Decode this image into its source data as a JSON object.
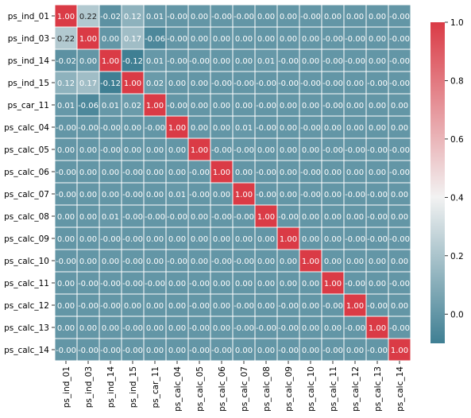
{
  "chart_data": {
    "type": "heatmap",
    "title": "",
    "xlabel": "",
    "ylabel": "",
    "labels": [
      "ps_ind_01",
      "ps_ind_03",
      "ps_ind_14",
      "ps_ind_15",
      "ps_car_11",
      "ps_calc_04",
      "ps_calc_05",
      "ps_calc_06",
      "ps_calc_07",
      "ps_calc_08",
      "ps_calc_09",
      "ps_calc_10",
      "ps_calc_11",
      "ps_calc_12",
      "ps_calc_13",
      "ps_calc_14"
    ],
    "matrix": [
      [
        "1.00",
        "0.22",
        "-0.02",
        "0.12",
        "0.01",
        "-0.00",
        "0.00",
        "-0.00",
        "-0.00",
        "0.00",
        "0.00",
        "-0.00",
        "0.00",
        "0.00",
        "0.00",
        "-0.00"
      ],
      [
        "0.22",
        "1.00",
        "0.00",
        "0.17",
        "-0.06",
        "-0.00",
        "0.00",
        "0.00",
        "0.00",
        "0.00",
        "0.00",
        "0.00",
        "-0.00",
        "-0.00",
        "0.00",
        "-0.00"
      ],
      [
        "-0.02",
        "0.00",
        "1.00",
        "-0.12",
        "0.01",
        "-0.00",
        "-0.00",
        "0.00",
        "0.00",
        "0.01",
        "-0.00",
        "0.00",
        "-0.00",
        "-0.00",
        "0.00",
        "-0.00"
      ],
      [
        "0.12",
        "0.17",
        "-0.12",
        "1.00",
        "0.02",
        "0.00",
        "0.00",
        "-0.00",
        "-0.00",
        "-0.00",
        "-0.00",
        "-0.00",
        "-0.00",
        "0.00",
        "-0.00",
        "-0.00"
      ],
      [
        "0.01",
        "-0.06",
        "0.01",
        "0.02",
        "1.00",
        "-0.00",
        "0.00",
        "0.00",
        "0.00",
        "-0.00",
        "0.00",
        "0.00",
        "-0.00",
        "0.00",
        "0.00",
        "0.00"
      ],
      [
        "-0.00",
        "-0.00",
        "-0.00",
        "0.00",
        "-0.00",
        "1.00",
        "0.00",
        "0.00",
        "0.01",
        "-0.00",
        "0.00",
        "-0.00",
        "0.00",
        "0.00",
        "0.00",
        "0.00"
      ],
      [
        "0.00",
        "0.00",
        "-0.00",
        "0.00",
        "0.00",
        "0.00",
        "1.00",
        "-0.00",
        "-0.00",
        "0.00",
        "0.00",
        "0.00",
        "-0.00",
        "-0.00",
        "-0.00",
        "-0.00"
      ],
      [
        "-0.00",
        "0.00",
        "0.00",
        "-0.00",
        "0.00",
        "0.00",
        "-0.00",
        "1.00",
        "0.00",
        "-0.00",
        "0.00",
        "-0.00",
        "0.00",
        "0.00",
        "0.00",
        "-0.00"
      ],
      [
        "-0.00",
        "0.00",
        "0.00",
        "-0.00",
        "0.00",
        "0.01",
        "-0.00",
        "0.00",
        "1.00",
        "-0.00",
        "0.00",
        "-0.00",
        "0.00",
        "-0.00",
        "-0.00",
        "0.00"
      ],
      [
        "0.00",
        "0.00",
        "0.01",
        "-0.00",
        "-0.00",
        "-0.00",
        "0.00",
        "-0.00",
        "-0.00",
        "1.00",
        "-0.00",
        "0.00",
        "0.00",
        "0.00",
        "-0.00",
        "0.00"
      ],
      [
        "0.00",
        "0.00",
        "-0.00",
        "-0.00",
        "0.00",
        "0.00",
        "0.00",
        "0.00",
        "0.00",
        "0.00",
        "1.00",
        "0.00",
        "0.00",
        "-0.00",
        "-0.00",
        "-0.00"
      ],
      [
        "-0.00",
        "0.00",
        "0.00",
        "-0.00",
        "0.00",
        "-0.00",
        "0.00",
        "-0.00",
        "-0.00",
        "0.00",
        "0.00",
        "1.00",
        "0.00",
        "0.00",
        "0.00",
        "0.00"
      ],
      [
        "0.00",
        "-0.00",
        "-0.00",
        "-0.00",
        "-0.00",
        "0.00",
        "-0.00",
        "0.00",
        "0.00",
        "0.00",
        "0.00",
        "0.00",
        "1.00",
        "-0.00",
        "0.00",
        "-0.00"
      ],
      [
        "0.00",
        "-0.00",
        "-0.00",
        "0.00",
        "0.00",
        "0.00",
        "-0.00",
        "0.00",
        "-0.00",
        "0.00",
        "-0.00",
        "0.00",
        "-0.00",
        "1.00",
        "-0.00",
        "0.00"
      ],
      [
        "0.00",
        "0.00",
        "0.00",
        "-0.00",
        "0.00",
        "0.00",
        "-0.00",
        "0.00",
        "-0.00",
        "-0.00",
        "-0.00",
        "0.00",
        "0.00",
        "-0.00",
        "1.00",
        "-0.00"
      ],
      [
        "-0.00",
        "-0.00",
        "-0.00",
        "-0.00",
        "0.00",
        "0.00",
        "-0.00",
        "-0.00",
        "0.00",
        "0.00",
        "-0.00",
        "0.00",
        "-0.00",
        "0.00",
        "-0.00",
        "1.00"
      ]
    ],
    "colorbar": {
      "range": [
        -0.1,
        1.0
      ],
      "ticks": [
        "0.0",
        "0.2",
        "0.4",
        "0.6",
        "0.8",
        "1.0"
      ],
      "colors": {
        "low": "#3f7f93",
        "mid": "#f2f2f2",
        "high": "#da3b46"
      }
    },
    "cell_border_color": "#ffffff",
    "text_color": "#ffffff",
    "tick_text_color": "#000000"
  }
}
